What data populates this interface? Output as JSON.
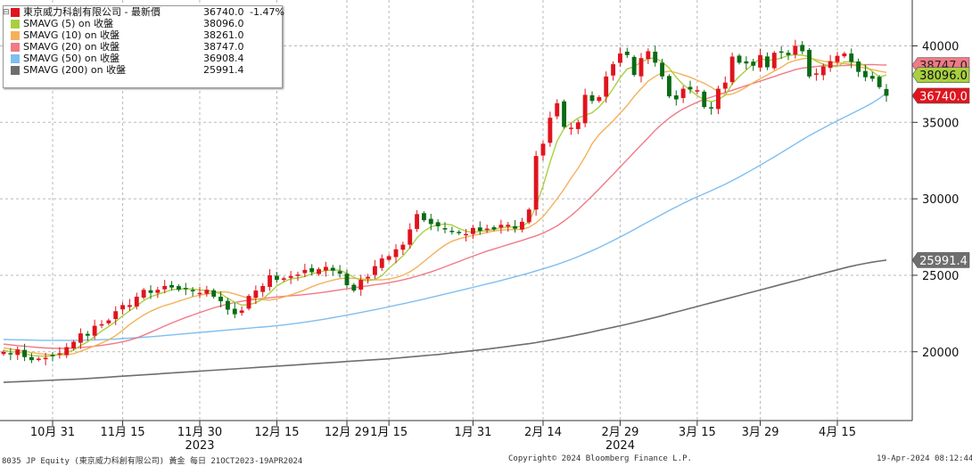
{
  "legend": {
    "main": {
      "label": "東京威力科創有限公司 - 最新價",
      "value": "36740.0",
      "change": "-1.47%",
      "color": "#e0141e"
    },
    "sma": [
      {
        "label": "SMAVG (5)  on 收盤",
        "value": "38096.0",
        "color": "#a8d040"
      },
      {
        "label": "SMAVG (10)  on 收盤",
        "value": "38261.0",
        "color": "#f5b15a"
      },
      {
        "label": "SMAVG (20)  on 收盤",
        "value": "38747.0",
        "color": "#f07a86"
      },
      {
        "label": "SMAVG (50)  on 收盤",
        "value": "36908.4",
        "color": "#7fbef0"
      },
      {
        "label": "SMAVG (200)  on 收盤",
        "value": "25991.4",
        "color": "#6e6e6e"
      }
    ]
  },
  "footer": {
    "left": "8035 JP Equity (東京威力科創有限公司) 黃金  每日 21OCT2023-19APR2024",
    "center": "Copyright© 2024 Bloomberg Finance L.P.",
    "right": "19-Apr-2024 08:12:44"
  },
  "chart_data": {
    "type": "candlestick",
    "ylim": [
      15500,
      43000
    ],
    "yticks": [
      20000,
      25000,
      30000,
      35000,
      40000
    ],
    "grid": true,
    "xticks": [
      {
        "label": "10月 31",
        "i": 7
      },
      {
        "label": "11月 15",
        "i": 17
      },
      {
        "label": "11月 30",
        "i": 28
      },
      {
        "label": "12月 15",
        "i": 39
      },
      {
        "label": "12月 29",
        "i": 49
      },
      {
        "label": "1月 15",
        "i": 55
      },
      {
        "label": "1月 31",
        "i": 67
      },
      {
        "label": "2月 14",
        "i": 77
      },
      {
        "label": "2月 29",
        "i": 88
      },
      {
        "label": "3月 15",
        "i": 99
      },
      {
        "label": "3月 29",
        "i": 108
      },
      {
        "label": "4月 15",
        "i": 119
      }
    ],
    "year_labels": [
      {
        "label": "2023",
        "i": 28
      },
      {
        "label": "2024",
        "i": 88
      }
    ],
    "last_value_tags": [
      {
        "text": "38747.0",
        "value": 38747.0,
        "bg": "#f07a86",
        "fg": "#222222"
      },
      {
        "text": "38096.0",
        "value": 38096.0,
        "bg": "#a8d040",
        "fg": "#111111"
      },
      {
        "text": "36740.0",
        "value": 36740.0,
        "bg": "#e0141e",
        "fg": "#ffffff"
      },
      {
        "text": "25991.4",
        "value": 25991.4,
        "bg": "#6e6e6e",
        "fg": "#ffffff"
      }
    ],
    "up_color": "#e0141e",
    "down_color": "#0a6b14",
    "closes": [
      20000,
      19850,
      20150,
      19650,
      19450,
      19550,
      19600,
      19700,
      19900,
      20300,
      20650,
      21200,
      21050,
      21700,
      21800,
      22050,
      22650,
      23050,
      23050,
      23600,
      24050,
      23850,
      24050,
      24300,
      24200,
      24050,
      24100,
      23950,
      23850,
      24050,
      23600,
      23300,
      22750,
      22450,
      22700,
      23650,
      24000,
      24300,
      25000,
      24700,
      24800,
      24950,
      25050,
      25350,
      25200,
      25400,
      25550,
      25300,
      25100,
      24350,
      24000,
      24700,
      24900,
      25600,
      26100,
      26250,
      26700,
      27000,
      28000,
      29000,
      28600,
      28350,
      28200,
      28000,
      27850,
      27750,
      27700,
      28100,
      27900,
      28050,
      28000,
      28300,
      28300,
      28050,
      28500,
      29300,
      32800,
      33600,
      35300,
      36250,
      34700,
      34650,
      35000,
      36800,
      36400,
      36650,
      38000,
      38800,
      39500,
      39400,
      38100,
      39200,
      39650,
      38900,
      38000,
      36700,
      36500,
      37200,
      37150,
      37100,
      36000,
      35900,
      37200,
      37600,
      39300,
      38900,
      38850,
      38700,
      39400,
      38600,
      39550,
      39550,
      39400,
      40000,
      39650,
      38000,
      38200,
      38650,
      39000,
      39350,
      39500,
      38950,
      38300,
      37950,
      37850,
      37300,
      36740
    ],
    "sma_5": [
      20100,
      20000,
      19980,
      19900,
      19750,
      19730,
      19700,
      19750,
      19820,
      19950,
      20100,
      20400,
      20650,
      21000,
      21350,
      21650,
      21980,
      22350,
      22680,
      23000,
      23350,
      23600,
      23750,
      23900,
      24050,
      24100,
      24120,
      24100,
      24040,
      24000,
      23940,
      23780,
      23500,
      23240,
      23050,
      23080,
      23200,
      23450,
      23850,
      24300,
      24570,
      24770,
      24820,
      24920,
      25090,
      25200,
      25310,
      25360,
      25330,
      25130,
      24860,
      24680,
      24650,
      24720,
      24980,
      25460,
      25850,
      26280,
      26800,
      27450,
      27880,
      28170,
      28300,
      28350,
      28280,
      28060,
      27880,
      27800,
      27880,
      27910,
      28000,
      28100,
      28150,
      28150,
      28210,
      28490,
      29520,
      30840,
      32400,
      33770,
      34600,
      34960,
      35280,
      35460,
      35630,
      36010,
      36540,
      37210,
      37920,
      38490,
      38640,
      38940,
      39160,
      39220,
      38940,
      38560,
      37950,
      37460,
      37110,
      36740,
      36480,
      36350,
      36480,
      36770,
      37520,
      38000,
      38420,
      38810,
      39180,
      39050,
      39090,
      39210,
      39380,
      39420,
      39390,
      39300,
      39000,
      38800,
      38670,
      38640,
      38960,
      38950,
      38920,
      38680,
      38320,
      37960,
      38096
    ],
    "sma_10": [
      20250,
      20180,
      20100,
      20020,
      19950,
      19880,
      19830,
      19800,
      19790,
      19800,
      19870,
      20030,
      20200,
      20380,
      20570,
      20780,
      21050,
      21400,
      21780,
      22100,
      22400,
      22650,
      22850,
      23020,
      23150,
      23300,
      23450,
      23600,
      23700,
      23780,
      23860,
      23920,
      23900,
      23780,
      23640,
      23500,
      23450,
      23400,
      23380,
      23450,
      23580,
      23720,
      23880,
      24050,
      24250,
      24420,
      24560,
      24680,
      24780,
      24810,
      24800,
      24770,
      24730,
      24700,
      24700,
      24750,
      24850,
      25000,
      25230,
      25530,
      25900,
      26280,
      26640,
      26980,
      27230,
      27380,
      27500,
      27600,
      27700,
      27800,
      27900,
      27950,
      27980,
      28000,
      28010,
      28140,
      28420,
      28830,
      29400,
      30000,
      30650,
      31350,
      32000,
      32750,
      33600,
      34200,
      34650,
      35100,
      35600,
      36100,
      36700,
      37200,
      37700,
      38000,
      38250,
      38350,
      38250,
      38100,
      37950,
      37750,
      37550,
      37300,
      37000,
      36800,
      36850,
      37050,
      37300,
      37600,
      37850,
      38100,
      38350,
      38600,
      38900,
      39050,
      39150,
      39200,
      39100,
      39000,
      38950,
      38900,
      38850,
      38800,
      38650,
      38550,
      38450,
      38350,
      38261
    ],
    "sma_20": [
      20500,
      20450,
      20400,
      20360,
      20320,
      20280,
      20250,
      20230,
      20220,
      20220,
      20240,
      20270,
      20310,
      20360,
      20420,
      20490,
      20560,
      20650,
      20760,
      20900,
      21080,
      21280,
      21480,
      21680,
      21880,
      22060,
      22240,
      22400,
      22560,
      22720,
      22870,
      23000,
      23120,
      23220,
      23300,
      23370,
      23430,
      23480,
      23530,
      23580,
      23620,
      23660,
      23700,
      23740,
      23790,
      23850,
      23910,
      23980,
      24050,
      24110,
      24180,
      24250,
      24310,
      24380,
      24440,
      24520,
      24600,
      24700,
      24810,
      24940,
      25080,
      25220,
      25380,
      25550,
      25730,
      25900,
      26080,
      26250,
      26420,
      26580,
      26720,
      26860,
      27000,
      27140,
      27280,
      27430,
      27580,
      27760,
      27980,
      28230,
      28550,
      28900,
      29300,
      29740,
      30180,
      30650,
      31120,
      31600,
      32080,
      32560,
      33040,
      33520,
      34000,
      34480,
      34900,
      35280,
      35600,
      35880,
      36100,
      36320,
      36500,
      36650,
      36800,
      36950,
      37100,
      37250,
      37400,
      37550,
      37700,
      37850,
      38000,
      38150,
      38300,
      38450,
      38550,
      38600,
      38650,
      38700,
      38700,
      38700,
      38720,
      38740,
      38760,
      38770,
      38780,
      38760,
      38747
    ],
    "sma_50": [
      20800,
      20790,
      20780,
      20770,
      20760,
      20750,
      20740,
      20740,
      20740,
      20740,
      20740,
      20750,
      20760,
      20770,
      20790,
      20810,
      20830,
      20860,
      20890,
      20920,
      20950,
      20980,
      21020,
      21060,
      21100,
      21140,
      21180,
      21220,
      21260,
      21300,
      21340,
      21380,
      21420,
      21460,
      21500,
      21540,
      21580,
      21620,
      21660,
      21700,
      21750,
      21810,
      21870,
      21930,
      22000,
      22070,
      22150,
      22230,
      22310,
      22390,
      22480,
      22570,
      22660,
      22750,
      22840,
      22940,
      23040,
      23140,
      23240,
      23340,
      23440,
      23550,
      23660,
      23770,
      23880,
      23990,
      24100,
      24210,
      24320,
      24430,
      24540,
      24660,
      24780,
      24900,
      25020,
      25150,
      25280,
      25420,
      25560,
      25710,
      25870,
      26040,
      26220,
      26410,
      26610,
      26820,
      27040,
      27270,
      27500,
      27740,
      27990,
      28240,
      28490,
      28740,
      28990,
      29230,
      29470,
      29700,
      29920,
      30130,
      30330,
      30530,
      30740,
      30960,
      31190,
      31430,
      31680,
      31940,
      32200,
      32470,
      32740,
      33020,
      33300,
      33580,
      33860,
      34130,
      34380,
      34630,
      34870,
      35100,
      35330,
      35560,
      35790,
      36020,
      36270,
      36570,
      36908.4
    ],
    "sma_200": [
      18000,
      18020,
      18040,
      18060,
      18080,
      18100,
      18120,
      18140,
      18160,
      18180,
      18200,
      18220,
      18250,
      18280,
      18310,
      18340,
      18370,
      18400,
      18430,
      18460,
      18490,
      18520,
      18550,
      18580,
      18610,
      18640,
      18670,
      18700,
      18730,
      18760,
      18790,
      18820,
      18850,
      18880,
      18910,
      18940,
      18970,
      19000,
      19030,
      19060,
      19090,
      19120,
      19150,
      19180,
      19210,
      19240,
      19270,
      19300,
      19330,
      19360,
      19390,
      19420,
      19450,
      19480,
      19510,
      19540,
      19580,
      19620,
      19660,
      19700,
      19740,
      19780,
      19820,
      19870,
      19920,
      19970,
      20020,
      20070,
      20120,
      20170,
      20230,
      20290,
      20350,
      20410,
      20470,
      20530,
      20600,
      20680,
      20760,
      20840,
      20930,
      21020,
      21110,
      21200,
      21300,
      21400,
      21500,
      21600,
      21700,
      21800,
      21910,
      22020,
      22130,
      22240,
      22360,
      22480,
      22600,
      22720,
      22840,
      22960,
      23080,
      23200,
      23320,
      23440,
      23560,
      23680,
      23800,
      23920,
      24040,
      24160,
      24280,
      24400,
      24520,
      24640,
      24760,
      24880,
      25000,
      25120,
      25240,
      25360,
      25480,
      25590,
      25690,
      25780,
      25860,
      25930,
      25991.4
    ]
  }
}
